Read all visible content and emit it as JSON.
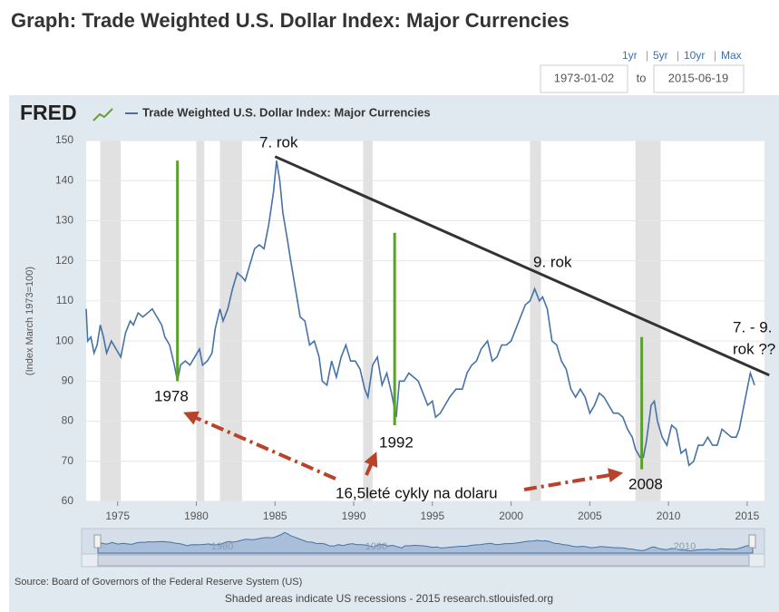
{
  "header": {
    "title": "Graph: Trade Weighted U.S. Dollar Index: Major Currencies"
  },
  "controls": {
    "ranges": [
      "1yr",
      "5yr",
      "10yr",
      "Max"
    ],
    "separator": "|",
    "start": "1973-01-02",
    "to": "to",
    "end": "2015-06-19"
  },
  "chart_data": {
    "type": "line",
    "logo": "FRED",
    "ylabel": "(Index March 1973=100)",
    "series": [
      {
        "name": "Trade Weighted U.S. Dollar Index: Major Currencies",
        "color": "#4572a7",
        "values": [
          108,
          100,
          101,
          97,
          99,
          104,
          101,
          97,
          100,
          98,
          96,
          102,
          105,
          104,
          107,
          106,
          107,
          108,
          106,
          104,
          101,
          99,
          94,
          90,
          94,
          95,
          94,
          96,
          98,
          94,
          95,
          97,
          103,
          108,
          105,
          108,
          113,
          117,
          116,
          115,
          119,
          123,
          124,
          123,
          129,
          137,
          145,
          140,
          132,
          125,
          120,
          113,
          106,
          105,
          99,
          100,
          96,
          90,
          89,
          95,
          91,
          96,
          99,
          95,
          95,
          93,
          88,
          86,
          94,
          96,
          89,
          92,
          87,
          81,
          90,
          90,
          92,
          91,
          90,
          87,
          84,
          85,
          81,
          82,
          84,
          86,
          88,
          88,
          92,
          94,
          95,
          98,
          100,
          95,
          96,
          99,
          99,
          100,
          103,
          106,
          109,
          110,
          113,
          110,
          111,
          108,
          100,
          99,
          95,
          93,
          88,
          86,
          88,
          86,
          82,
          84,
          87,
          86,
          84,
          82,
          82,
          81,
          78,
          76,
          73,
          71,
          71,
          75,
          84,
          85,
          80,
          76,
          74,
          79,
          78,
          72,
          73,
          69,
          70,
          74,
          74,
          76,
          74,
          74,
          78,
          77,
          76,
          76,
          78,
          84,
          88,
          92,
          89
        ]
      }
    ],
    "x": [
      1973.0,
      1973.1,
      1973.3,
      1973.5,
      1973.7,
      1973.9,
      1974.1,
      1974.3,
      1974.6,
      1974.9,
      1975.2,
      1975.5,
      1975.8,
      1976.0,
      1976.3,
      1976.6,
      1976.9,
      1977.2,
      1977.5,
      1977.8,
      1978.0,
      1978.3,
      1978.6,
      1978.8,
      1979.0,
      1979.3,
      1979.6,
      1979.9,
      1980.2,
      1980.4,
      1980.7,
      1981.0,
      1981.2,
      1981.5,
      1981.7,
      1982.0,
      1982.3,
      1982.6,
      1982.9,
      1983.1,
      1983.4,
      1983.7,
      1984.0,
      1984.3,
      1984.6,
      1984.9,
      1985.1,
      1985.3,
      1985.5,
      1985.8,
      1986.0,
      1986.3,
      1986.6,
      1986.9,
      1987.2,
      1987.5,
      1987.8,
      1988.0,
      1988.3,
      1988.6,
      1988.9,
      1989.2,
      1989.5,
      1989.8,
      1990.1,
      1990.4,
      1990.7,
      1990.9,
      1991.2,
      1991.5,
      1991.8,
      1992.1,
      1992.4,
      1992.7,
      1992.9,
      1993.2,
      1993.5,
      1993.8,
      1994.1,
      1994.4,
      1994.7,
      1995.0,
      1995.2,
      1995.5,
      1995.8,
      1996.1,
      1996.5,
      1996.9,
      1997.2,
      1997.5,
      1997.8,
      1998.1,
      1998.5,
      1998.8,
      1999.1,
      1999.4,
      1999.7,
      2000.0,
      2000.3,
      2000.6,
      2000.9,
      2001.2,
      2001.5,
      2001.8,
      2002.0,
      2002.3,
      2002.6,
      2002.9,
      2003.2,
      2003.5,
      2003.8,
      2004.1,
      2004.4,
      2004.7,
      2005.0,
      2005.3,
      2005.6,
      2005.9,
      2006.2,
      2006.5,
      2006.8,
      2007.1,
      2007.4,
      2007.7,
      2007.9,
      2008.2,
      2008.4,
      2008.6,
      2008.9,
      2009.1,
      2009.3,
      2009.6,
      2009.9,
      2010.2,
      2010.5,
      2010.8,
      2011.1,
      2011.3,
      2011.6,
      2011.9,
      2012.2,
      2012.5,
      2012.8,
      2013.1,
      2013.4,
      2013.7,
      2014.0,
      2014.3,
      2014.5,
      2014.8,
      2015.0,
      2015.2,
      2015.47
    ],
    "xlim": [
      1973,
      2016.1
    ],
    "xticks": [
      1975,
      1980,
      1985,
      1990,
      1995,
      2000,
      2005,
      2010,
      2015
    ],
    "ylim": [
      60,
      150
    ],
    "yticks": [
      60,
      70,
      80,
      90,
      100,
      110,
      120,
      130,
      140,
      150
    ],
    "grid": true,
    "recessions": [
      [
        1973.9,
        1975.2
      ],
      [
        1980.0,
        1980.5
      ],
      [
        1981.5,
        1982.9
      ],
      [
        1990.6,
        1991.2
      ],
      [
        2001.2,
        2001.9
      ],
      [
        2007.9,
        2009.5
      ]
    ],
    "annotation_lines": [
      {
        "color": "#5aa02c",
        "x": [
          1978.8,
          1978.8
        ],
        "y": [
          145,
          90
        ]
      },
      {
        "color": "#5aa02c",
        "x": [
          1992.6,
          1992.6
        ],
        "y": [
          127,
          79
        ]
      },
      {
        "color": "#5aa02c",
        "x": [
          2008.3,
          2008.3
        ],
        "y": [
          101,
          68
        ]
      },
      {
        "color": "#333333",
        "x": [
          1985.0,
          2016.4
        ],
        "y": [
          146,
          91.5
        ]
      }
    ],
    "annotations": [
      "7. rok",
      "9. rok",
      "7. - 9.",
      "rok ??",
      "1978",
      "1992",
      "2008",
      "16,5leté cykly na dolaru"
    ],
    "navigator_ticks": [
      1980,
      1990,
      2010
    ],
    "source": "Source: Board of Governors of the Federal Reserve System (US)",
    "note": "Shaded areas indicate US recessions - 2015 research.stlouisfed.org"
  }
}
